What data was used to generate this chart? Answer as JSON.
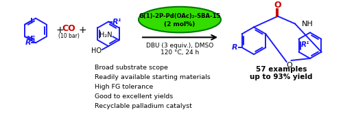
{
  "bg_color": "#ffffff",
  "blue": "#1a1aff",
  "red": "#cc0000",
  "black": "#000000",
  "green_face": "#33dd00",
  "green_edge": "#007700",
  "catalyst_line1": "G(1)-2P-Pd(OAc)₂-SBA-15",
  "catalyst_line2": "(2 mol%)",
  "conditions1": "DBU (3 equiv.), DMSO",
  "conditions2": "120 °C, 24 h",
  "bullet1": "Broad substrate scope",
  "bullet2": "Readily available starting materials",
  "bullet3": "High FG tolerance",
  "bullet4": "Good to excellent yields",
  "bullet5": "Recyclable palladium catalyst",
  "ex_line1": "57 examples",
  "ex_line2": "up to 93% yield",
  "figwidth": 5.0,
  "figheight": 1.79,
  "dpi": 100
}
